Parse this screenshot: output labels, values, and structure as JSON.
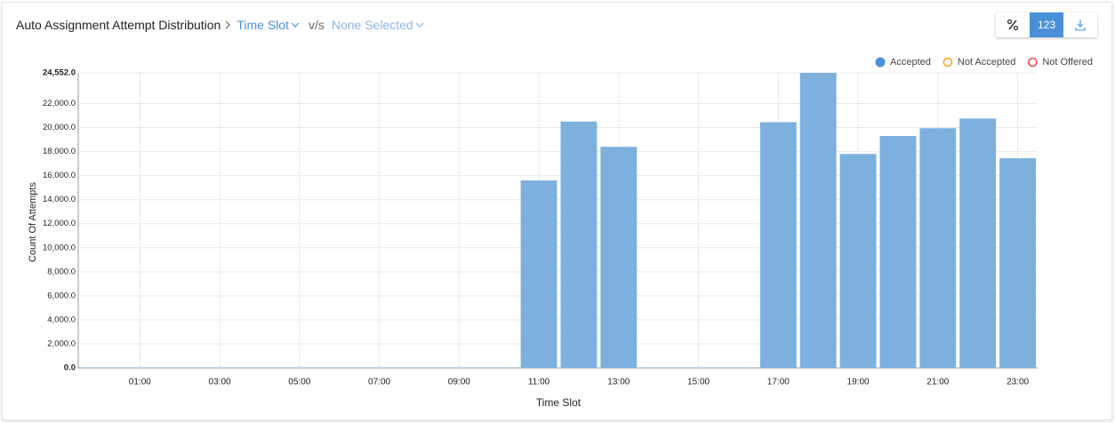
{
  "header": {
    "title": "Auto Assignment Attempt Distribution",
    "dimension": "Time Slot",
    "versus": "v/s",
    "compare": "None Selected",
    "count_button": "123"
  },
  "chart_data": {
    "type": "bar",
    "x_label": "Time Slot",
    "y_label": "Count Of Attempts",
    "categories": [
      null,
      "01:00",
      null,
      "03:00",
      null,
      "05:00",
      null,
      "07:00",
      null,
      "09:00",
      null,
      "11:00",
      null,
      "13:00",
      null,
      "15:00",
      null,
      "17:00",
      null,
      "19:00",
      null,
      "21:00",
      null,
      "23:00"
    ],
    "series": [
      {
        "name": "Accepted",
        "color": "#7eb0de",
        "legend_color": "#4a90d9",
        "marker": "filled",
        "values": [
          40,
          40,
          40,
          40,
          40,
          40,
          40,
          40,
          40,
          40,
          40,
          15600,
          20500,
          18400,
          40,
          40,
          40,
          20450,
          24552,
          17800,
          19300,
          19950,
          20750,
          17450
        ]
      },
      {
        "name": "Not Accepted",
        "color": "#f5a623",
        "legend_color": "#f5a623",
        "marker": "ring",
        "values": [
          0,
          0,
          0,
          0,
          0,
          0,
          0,
          0,
          0,
          0,
          0,
          0,
          0,
          0,
          0,
          0,
          0,
          0,
          0,
          0,
          0,
          0,
          0,
          0
        ]
      },
      {
        "name": "Not Offered",
        "color": "#e94b4b",
        "legend_color": "#e94b4b",
        "marker": "ring",
        "values": [
          0,
          0,
          0,
          0,
          0,
          0,
          0,
          0,
          0,
          0,
          0,
          0,
          0,
          0,
          0,
          0,
          0,
          0,
          0,
          0,
          0,
          0,
          0,
          0
        ]
      }
    ],
    "ylim": [
      0,
      24552
    ],
    "yticks": [
      {
        "value": 0,
        "label": "0.0"
      },
      {
        "value": 2000,
        "label": "2,000.0"
      },
      {
        "value": 4000,
        "label": "4,000.0"
      },
      {
        "value": 6000,
        "label": "6,000.0"
      },
      {
        "value": 8000,
        "label": "8,000.0"
      },
      {
        "value": 10000,
        "label": "10,000.0"
      },
      {
        "value": 12000,
        "label": "12,000.0"
      },
      {
        "value": 14000,
        "label": "14,000.0"
      },
      {
        "value": 16000,
        "label": "16,000.0"
      },
      {
        "value": 18000,
        "label": "18,000.0"
      },
      {
        "value": 20000,
        "label": "20,000.0"
      },
      {
        "value": 22000,
        "label": "22,000.0"
      },
      {
        "value": 24552,
        "label": "24,552.0"
      }
    ],
    "grid": true,
    "stacked": true,
    "legend": "top-right"
  }
}
